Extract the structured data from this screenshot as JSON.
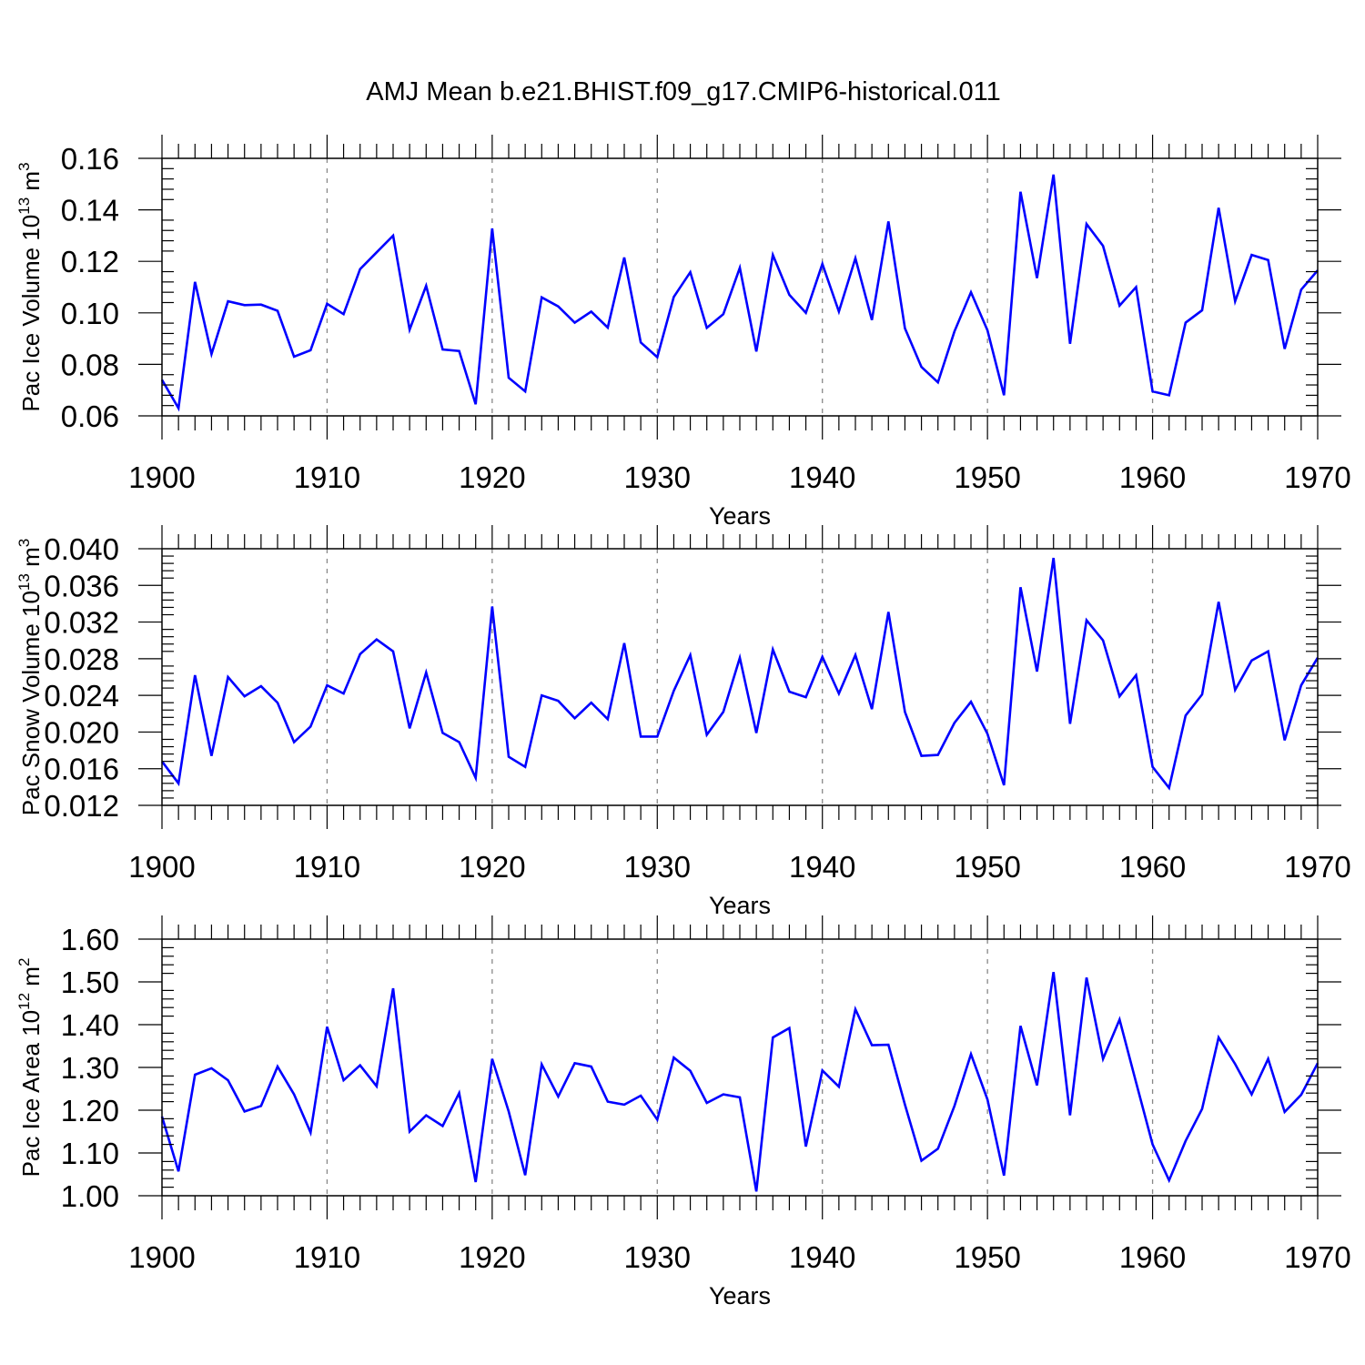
{
  "title": "AMJ Mean b.e21.BHIST.f09_g17.CMIP6-historical.011",
  "chart_data": [
    {
      "type": "line",
      "ylabel_main": "Pac Ice Volume 10",
      "ylabel_exp": "13",
      "ylabel_unit": " m",
      "ylabel_unit_exp": "3",
      "xlabel": "Years",
      "xlim": [
        1900,
        1970
      ],
      "ylim": [
        0.06,
        0.16
      ],
      "yticks": [
        0.06,
        0.08,
        0.1,
        0.12,
        0.14,
        0.16
      ],
      "ytick_labels": [
        "0.06",
        "0.08",
        "0.10",
        "0.12",
        "0.14",
        "0.16"
      ],
      "xticks": [
        1900,
        1910,
        1920,
        1930,
        1940,
        1950,
        1960,
        1970
      ],
      "xtick_labels": [
        "1900",
        "1910",
        "1920",
        "1930",
        "1940",
        "1950",
        "1960",
        "1970"
      ],
      "grid_x": true,
      "color": "#0000ff",
      "x_start": 1900,
      "values": [
        0.074,
        0.063,
        0.112,
        0.084,
        0.1045,
        0.103,
        0.1032,
        0.1008,
        0.083,
        0.0855,
        0.1035,
        0.0995,
        0.117,
        0.1235,
        0.13,
        0.0935,
        0.1105,
        0.0858,
        0.0852,
        0.0645,
        0.1328,
        0.0748,
        0.0695,
        0.106,
        0.1025,
        0.0962,
        0.1005,
        0.0943,
        0.1215,
        0.0885,
        0.0828,
        0.1062,
        0.1158,
        0.0942,
        0.0995,
        0.1175,
        0.085,
        0.1225,
        0.107,
        0.1,
        0.119,
        0.1005,
        0.1212,
        0.0972,
        0.1355,
        0.094,
        0.079,
        0.073,
        0.0928,
        0.108,
        0.0932,
        0.068,
        0.147,
        0.1135,
        0.1537,
        0.088,
        0.1345,
        0.126,
        0.1028,
        0.11,
        0.0695,
        0.068,
        0.0962,
        0.101,
        0.1408,
        0.1045,
        0.1225,
        0.1205,
        0.086,
        0.109,
        0.1165
      ]
    },
    {
      "type": "line",
      "ylabel_main": "Pac Snow Volume 10",
      "ylabel_exp": "13",
      "ylabel_unit": " m",
      "ylabel_unit_exp": "3",
      "xlabel": "Years",
      "xlim": [
        1900,
        1970
      ],
      "ylim": [
        0.012,
        0.04
      ],
      "yticks": [
        0.012,
        0.016,
        0.02,
        0.024,
        0.028,
        0.032,
        0.036,
        0.04
      ],
      "ytick_labels": [
        "0.012",
        "0.016",
        "0.020",
        "0.024",
        "0.028",
        "0.032",
        "0.036",
        "0.040"
      ],
      "xticks": [
        1900,
        1910,
        1920,
        1930,
        1940,
        1950,
        1960,
        1970
      ],
      "xtick_labels": [
        "1900",
        "1910",
        "1920",
        "1930",
        "1940",
        "1950",
        "1960",
        "1970"
      ],
      "grid_x": true,
      "color": "#0000ff",
      "x_start": 1900,
      "values": [
        0.0168,
        0.0144,
        0.0262,
        0.0174,
        0.026,
        0.0239,
        0.025,
        0.0232,
        0.0189,
        0.0206,
        0.0251,
        0.0242,
        0.0285,
        0.0301,
        0.0288,
        0.0204,
        0.0265,
        0.0199,
        0.0189,
        0.015,
        0.0337,
        0.0173,
        0.0162,
        0.024,
        0.0234,
        0.0215,
        0.0232,
        0.0214,
        0.0297,
        0.0195,
        0.0195,
        0.0245,
        0.0284,
        0.0197,
        0.0222,
        0.0281,
        0.0199,
        0.029,
        0.0244,
        0.0238,
        0.0282,
        0.0242,
        0.0284,
        0.0225,
        0.0331,
        0.0222,
        0.0174,
        0.0175,
        0.021,
        0.0233,
        0.0198,
        0.0142,
        0.0358,
        0.0266,
        0.039,
        0.0209,
        0.0322,
        0.03,
        0.0239,
        0.0262,
        0.0162,
        0.0139,
        0.0218,
        0.0241,
        0.0342,
        0.0246,
        0.0278,
        0.0288,
        0.0191,
        0.0251,
        0.0281
      ]
    },
    {
      "type": "line",
      "ylabel_main": "Pac Ice Area 10",
      "ylabel_exp": "12",
      "ylabel_unit": " m",
      "ylabel_unit_exp": "2",
      "xlabel": "Years",
      "xlim": [
        1900,
        1970
      ],
      "ylim": [
        1.0,
        1.6
      ],
      "yticks": [
        1.0,
        1.1,
        1.2,
        1.3,
        1.4,
        1.5,
        1.6
      ],
      "ytick_labels": [
        "1.00",
        "1.10",
        "1.20",
        "1.30",
        "1.40",
        "1.50",
        "1.60"
      ],
      "xticks": [
        1900,
        1910,
        1920,
        1930,
        1940,
        1950,
        1960,
        1970
      ],
      "xtick_labels": [
        "1900",
        "1910",
        "1920",
        "1930",
        "1940",
        "1950",
        "1960",
        "1970"
      ],
      "grid_x": true,
      "color": "#0000ff",
      "x_start": 1900,
      "values": [
        1.185,
        1.057,
        1.283,
        1.298,
        1.27,
        1.197,
        1.21,
        1.302,
        1.237,
        1.148,
        1.395,
        1.27,
        1.305,
        1.256,
        1.485,
        1.15,
        1.188,
        1.163,
        1.24,
        1.032,
        1.32,
        1.197,
        1.048,
        1.307,
        1.232,
        1.31,
        1.302,
        1.22,
        1.213,
        1.234,
        1.178,
        1.323,
        1.292,
        1.217,
        1.237,
        1.23,
        1.01,
        1.37,
        1.392,
        1.115,
        1.293,
        1.255,
        1.436,
        1.352,
        1.353,
        1.213,
        1.082,
        1.11,
        1.21,
        1.331,
        1.225,
        1.047,
        1.397,
        1.258,
        1.523,
        1.188,
        1.51,
        1.32,
        1.412,
        1.265,
        1.12,
        1.036,
        1.128,
        1.203,
        1.37,
        1.308,
        1.237,
        1.32,
        1.196,
        1.236,
        1.31
      ]
    }
  ]
}
